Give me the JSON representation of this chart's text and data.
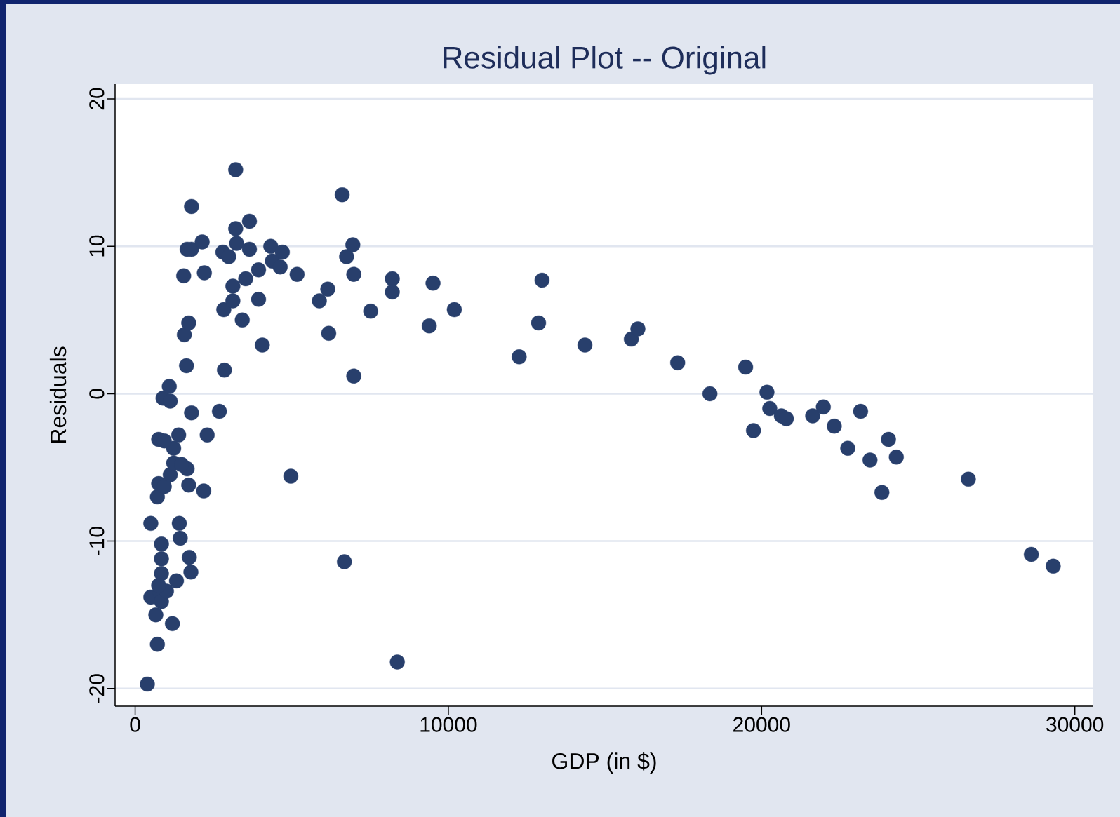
{
  "chart_data": {
    "type": "scatter",
    "title": "Residual Plot -- Original",
    "xlabel": "GDP (in $)",
    "ylabel": "Residuals",
    "xlim": [
      -640,
      30590
    ],
    "ylim": [
      -21.2,
      21.0
    ],
    "xticks": [
      0,
      10000,
      20000,
      30000
    ],
    "yticks": [
      -20,
      -10,
      0,
      10,
      20
    ],
    "grid": "y",
    "marker": "circle",
    "series": [
      {
        "color": "#283f6c",
        "x": [
          390,
          710,
          1190,
          660,
          500,
          800,
          1320,
          840,
          840,
          1000,
          750,
          1780,
          1730,
          840,
          840,
          1440,
          1410,
          500,
          710,
          750,
          930,
          1710,
          2190,
          1120,
          1660,
          1230,
          1480,
          1230,
          750,
          930,
          1390,
          2300,
          1800,
          2690,
          890,
          1120,
          1090,
          1640,
          2850,
          1570,
          1710,
          1550,
          1660,
          1800,
          1800,
          2140,
          2210,
          2830,
          2800,
          2990,
          3120,
          3120,
          3240,
          3210,
          3210,
          3420,
          3530,
          3650,
          3650,
          3940,
          3940,
          4060,
          4330,
          4380,
          4630,
          4700,
          4970,
          5170,
          5880,
          6150,
          6180,
          6610,
          6750,
          6950,
          6980,
          6980,
          6680,
          7520,
          8210,
          8210,
          8370,
          9390,
          9510,
          10190,
          12260,
          12880,
          12990,
          14360,
          15840,
          16050,
          17320,
          18350,
          19490,
          19740,
          20170,
          20260,
          20630,
          20790,
          21630,
          21970,
          22320,
          22750,
          23160,
          23460,
          23840,
          24050,
          24300,
          26600,
          28610,
          29310
        ],
        "values": [
          -19.7,
          -17.0,
          -15.6,
          -15.0,
          -13.8,
          -13.5,
          -12.7,
          -14.1,
          -12.2,
          -13.4,
          -13.0,
          -12.1,
          -11.1,
          -11.2,
          -10.2,
          -9.8,
          -8.8,
          -8.8,
          -7.0,
          -6.1,
          -6.3,
          -6.2,
          -6.6,
          -5.5,
          -5.1,
          -4.7,
          -4.8,
          -3.7,
          -3.1,
          -3.2,
          -2.8,
          -2.8,
          -1.3,
          -1.2,
          -0.3,
          -0.5,
          0.5,
          1.9,
          1.6,
          4.0,
          4.8,
          8.0,
          9.8,
          9.8,
          12.7,
          10.3,
          8.2,
          5.7,
          9.6,
          9.3,
          7.3,
          6.3,
          10.2,
          11.2,
          15.2,
          5.0,
          7.8,
          11.7,
          9.8,
          8.4,
          6.4,
          3.3,
          10.0,
          9.0,
          8.6,
          9.6,
          -5.6,
          8.1,
          6.3,
          7.1,
          4.1,
          13.5,
          9.3,
          10.1,
          8.1,
          1.2,
          -11.4,
          5.6,
          7.8,
          6.9,
          -18.2,
          4.6,
          7.5,
          5.7,
          2.5,
          4.8,
          7.7,
          3.3,
          3.7,
          4.4,
          2.1,
          0.0,
          1.8,
          -2.5,
          0.1,
          -1.0,
          -1.5,
          -1.7,
          -1.5,
          -0.9,
          -2.2,
          -3.7,
          -1.2,
          -4.5,
          -6.7,
          -3.1,
          -4.3,
          -5.8,
          -10.9,
          -11.7
        ]
      }
    ]
  }
}
